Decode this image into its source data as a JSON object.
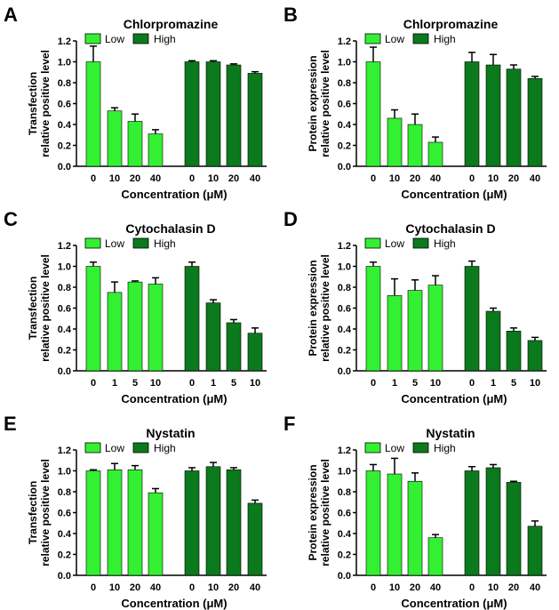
{
  "colors": {
    "low": "#33f033",
    "high": "#0b7a1c",
    "axis": "#000000"
  },
  "chart_data": [
    {
      "panel": "A",
      "type": "bar",
      "title": "Chlorpromazine",
      "ylabel": [
        "Transfection",
        "relative positive level"
      ],
      "xlabel": "Concentration (μM)",
      "categories": [
        "0",
        "10",
        "20",
        "40"
      ],
      "ylim": [
        0,
        1.2
      ],
      "yticks": [
        "0.0",
        "0.2",
        "0.4",
        "0.6",
        "0.8",
        "1.0",
        "1.2"
      ],
      "legend": [
        "Low",
        "High"
      ],
      "legend_position": "top",
      "series": [
        {
          "name": "Low",
          "values": [
            1.0,
            0.53,
            0.43,
            0.31
          ],
          "errors": [
            0.15,
            0.03,
            0.07,
            0.04
          ]
        },
        {
          "name": "High",
          "values": [
            1.0,
            1.0,
            0.97,
            0.89
          ],
          "errors": [
            0.01,
            0.01,
            0.01,
            0.015
          ]
        }
      ]
    },
    {
      "panel": "B",
      "type": "bar",
      "title": "Chlorpromazine",
      "ylabel": [
        "Protein expression",
        "relative positive level"
      ],
      "xlabel": "Concentration (μM)",
      "categories": [
        "0",
        "10",
        "20",
        "40"
      ],
      "ylim": [
        0,
        1.2
      ],
      "yticks": [
        "0.0",
        "0.2",
        "0.4",
        "0.6",
        "0.8",
        "1.0",
        "1.2"
      ],
      "legend": [
        "Low",
        "High"
      ],
      "legend_position": "top",
      "series": [
        {
          "name": "Low",
          "values": [
            1.0,
            0.46,
            0.4,
            0.23
          ],
          "errors": [
            0.14,
            0.08,
            0.1,
            0.05
          ]
        },
        {
          "name": "High",
          "values": [
            1.0,
            0.97,
            0.93,
            0.84
          ],
          "errors": [
            0.09,
            0.1,
            0.04,
            0.02
          ]
        }
      ]
    },
    {
      "panel": "C",
      "type": "bar",
      "title": "Cytochalasin D",
      "ylabel": [
        "Transfection",
        "relative positive level"
      ],
      "xlabel": "Concentration (μM)",
      "categories": [
        "0",
        "1",
        "5",
        "10"
      ],
      "ylim": [
        0,
        1.2
      ],
      "yticks": [
        "0.0",
        "0.2",
        "0.4",
        "0.6",
        "0.8",
        "1.0",
        "1.2"
      ],
      "legend": [
        "Low",
        "High"
      ],
      "legend_position": "top",
      "series": [
        {
          "name": "Low",
          "values": [
            1.0,
            0.75,
            0.85,
            0.83
          ],
          "errors": [
            0.04,
            0.1,
            0.01,
            0.06
          ]
        },
        {
          "name": "High",
          "values": [
            1.0,
            0.65,
            0.46,
            0.36
          ],
          "errors": [
            0.04,
            0.03,
            0.03,
            0.05
          ]
        }
      ]
    },
    {
      "panel": "D",
      "type": "bar",
      "title": "Cytochalasin D",
      "ylabel": [
        "Protein expression",
        "relative positive level"
      ],
      "xlabel": "Concentration (μM)",
      "categories": [
        "0",
        "1",
        "5",
        "10"
      ],
      "ylim": [
        0,
        1.2
      ],
      "yticks": [
        "0.0",
        "0.2",
        "0.4",
        "0.6",
        "0.8",
        "1.0",
        "1.2"
      ],
      "legend": [
        "Low",
        "High"
      ],
      "legend_position": "top",
      "series": [
        {
          "name": "Low",
          "values": [
            1.0,
            0.72,
            0.77,
            0.82
          ],
          "errors": [
            0.04,
            0.16,
            0.1,
            0.09
          ]
        },
        {
          "name": "High",
          "values": [
            1.0,
            0.57,
            0.38,
            0.29
          ],
          "errors": [
            0.05,
            0.03,
            0.03,
            0.03
          ]
        }
      ]
    },
    {
      "panel": "E",
      "type": "bar",
      "title": "Nystatin",
      "ylabel": [
        "Transfection",
        "relative positive level"
      ],
      "xlabel": "Concentration (μM)",
      "categories": [
        "0",
        "10",
        "20",
        "40"
      ],
      "ylim": [
        0,
        1.2
      ],
      "yticks": [
        "0.0",
        "0.2",
        "0.4",
        "0.6",
        "0.8",
        "1.0",
        "1.2"
      ],
      "legend": [
        "Low",
        "High"
      ],
      "legend_position": "top",
      "series": [
        {
          "name": "Low",
          "values": [
            1.0,
            1.01,
            1.01,
            0.79
          ],
          "errors": [
            0.01,
            0.06,
            0.04,
            0.04
          ]
        },
        {
          "name": "High",
          "values": [
            1.0,
            1.04,
            1.01,
            0.69
          ],
          "errors": [
            0.03,
            0.04,
            0.02,
            0.03
          ]
        }
      ]
    },
    {
      "panel": "F",
      "type": "bar",
      "title": "Nystatin",
      "ylabel": [
        "Protein expression",
        "relative positive level"
      ],
      "xlabel": "Concentration (μM)",
      "categories": [
        "0",
        "10",
        "20",
        "40"
      ],
      "ylim": [
        0,
        1.2
      ],
      "yticks": [
        "0.0",
        "0.2",
        "0.4",
        "0.6",
        "0.8",
        "1.0",
        "1.2"
      ],
      "legend": [
        "Low",
        "High"
      ],
      "legend_position": "top",
      "series": [
        {
          "name": "Low",
          "values": [
            1.0,
            0.97,
            0.9,
            0.36
          ],
          "errors": [
            0.06,
            0.15,
            0.08,
            0.03
          ]
        },
        {
          "name": "High",
          "values": [
            1.0,
            1.03,
            0.89,
            0.47
          ],
          "errors": [
            0.04,
            0.03,
            0.01,
            0.05
          ]
        }
      ]
    }
  ]
}
